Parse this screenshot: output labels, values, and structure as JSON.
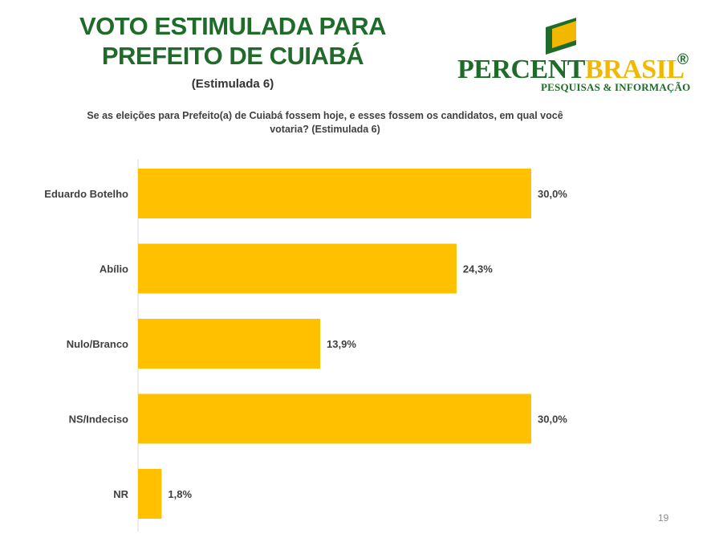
{
  "header": {
    "title_line1": "VOTO ESTIMULADA PARA",
    "title_line2": "PREFEITO DE CUIABÁ",
    "subtitle": "(Estimulada  6)",
    "question_line1": "Se as eleições para Prefeito(a) de Cuiabá fossem hoje, e esses fossem os candidatos, em qual você",
    "question_line2": "votaria? (Estimulada 6)"
  },
  "logo": {
    "word_part1": "PERCENT",
    "word_part2": "BRASIL",
    "registered": "®",
    "tagline": "PESQUISAS & INFORMAÇÃO"
  },
  "page_number": "19",
  "colors": {
    "title_green": "#1e6b2a",
    "bar": "#ffc000",
    "brand_yellow": "#f2b800"
  },
  "chart_data": {
    "type": "bar",
    "orientation": "horizontal",
    "categories": [
      "Eduardo Botelho",
      "Abílio",
      "Nulo/Branco",
      "NS/Indeciso",
      "NR"
    ],
    "values": [
      30.0,
      24.3,
      13.9,
      30.0,
      1.8
    ],
    "labels": [
      "30,0%",
      "24,3%",
      "13,9%",
      "30,0%",
      "1,8%"
    ],
    "unit": "%",
    "xlim": [
      0,
      30
    ],
    "grid": false,
    "legend": "none"
  }
}
